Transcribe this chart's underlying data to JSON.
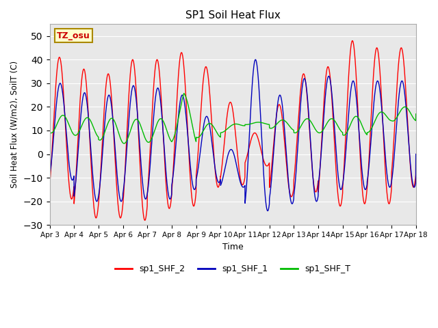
{
  "title": "SP1 Soil Heat Flux",
  "ylabel": "Soil Heat Flux (W/m2), SoilT (C)",
  "xlabel": "Time",
  "ylim": [
    -30,
    55
  ],
  "yticks": [
    -30,
    -20,
    -10,
    0,
    10,
    20,
    30,
    40,
    50
  ],
  "xtick_labels": [
    "Apr 3",
    "Apr 4",
    "Apr 5",
    "Apr 6",
    "Apr 7",
    "Apr 8",
    "Apr 9",
    "Apr 10",
    "Apr 11",
    "Apr 12",
    "Apr 13",
    "Apr 14",
    "Apr 15",
    "Apr 16",
    "Apr 17",
    "Apr 18"
  ],
  "color_shf2": "#ff0000",
  "color_shf1": "#0000bb",
  "color_shft": "#00bb00",
  "legend_labels": [
    "sp1_SHF_2",
    "sp1_SHF_1",
    "sp1_SHF_T"
  ],
  "bg_color": "#e8e8e8",
  "tz_label": "TZ_osu",
  "tz_bg": "#ffffcc",
  "tz_border": "#aa8800"
}
